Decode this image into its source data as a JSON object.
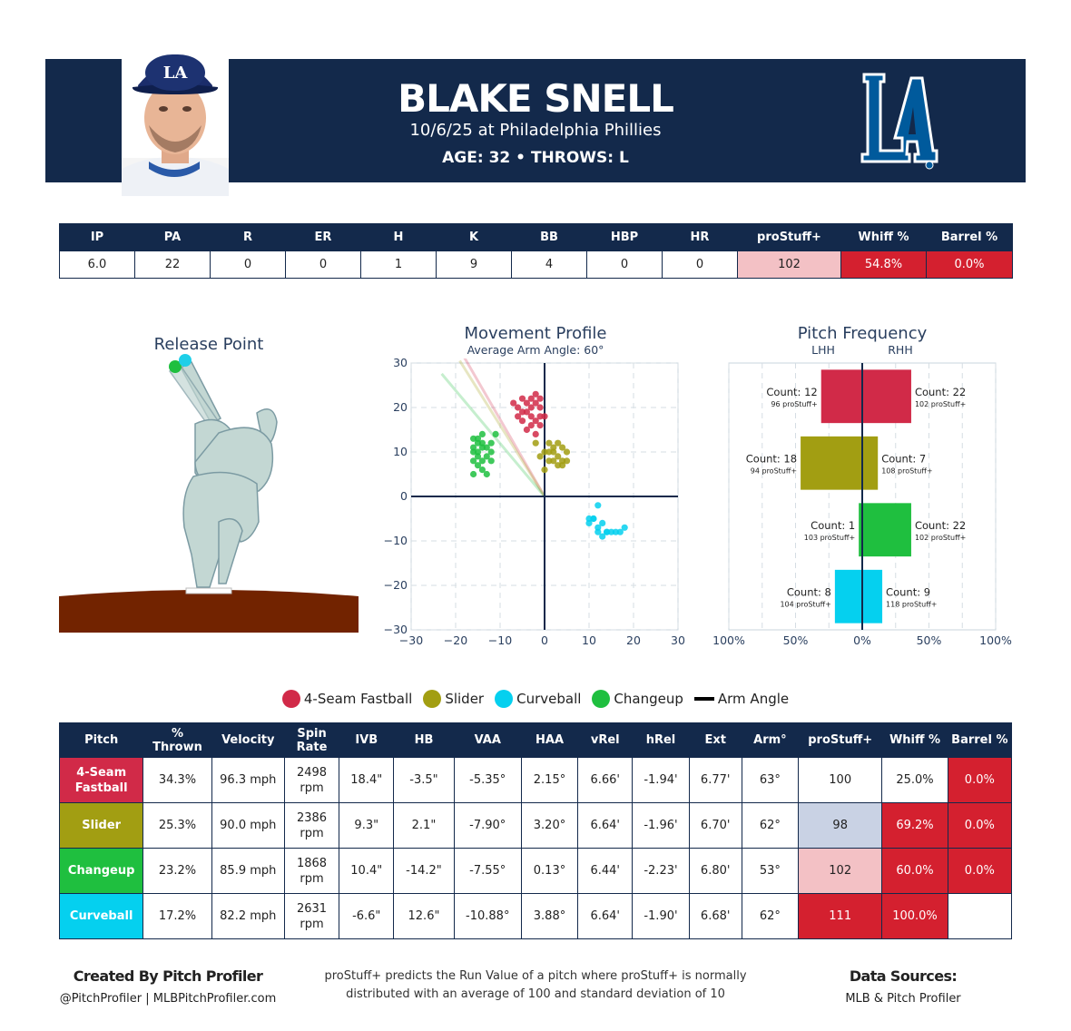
{
  "header": {
    "name": "BLAKE SNELL",
    "game": "10/6/25 at Philadelphia Phillies",
    "bio": "AGE: 32 • THROWS: L",
    "logo_text": "LA",
    "colors": {
      "navy": "#13294b",
      "dodger_blue": "#005a9c"
    }
  },
  "summary": {
    "headers": [
      "IP",
      "PA",
      "R",
      "ER",
      "H",
      "K",
      "BB",
      "HBP",
      "HR",
      "proStuff+",
      "Whiff %",
      "Barrel %"
    ],
    "values": [
      "6.0",
      "22",
      "0",
      "0",
      "1",
      "9",
      "4",
      "0",
      "0",
      "102",
      "54.8%",
      "0.0%"
    ],
    "cell_colors": [
      "#ffffff",
      "#ffffff",
      "#ffffff",
      "#ffffff",
      "#ffffff",
      "#ffffff",
      "#ffffff",
      "#ffffff",
      "#ffffff",
      "#f3c1c5",
      "#d4202f",
      "#d4202f"
    ],
    "cell_text_colors": [
      "#222",
      "#222",
      "#222",
      "#222",
      "#222",
      "#222",
      "#222",
      "#222",
      "#222",
      "#222",
      "#ffffff",
      "#ffffff"
    ]
  },
  "release": {
    "title": "Release Point",
    "points": [
      {
        "pitch": "Changeup",
        "color": "#1fbf3f"
      },
      {
        "pitch": "Curveball",
        "color": "#1ecfe8"
      }
    ]
  },
  "movement": {
    "title": "Movement Profile",
    "subtitle": "Average Arm Angle: 60°"
  },
  "frequency": {
    "title": "Pitch Frequency",
    "left_label": "LHH",
    "right_label": "RHH",
    "rows": [
      {
        "pitch": "4-Seam Fastball",
        "color": "#d12a48",
        "lhh_count": "Count: 12",
        "lhh_stuff": "96 proStuff+",
        "rhh_count": "Count: 22",
        "rhh_stuff": "102 proStuff+"
      },
      {
        "pitch": "Slider",
        "color": "#a29e12",
        "lhh_count": "Count: 18",
        "lhh_stuff": "94 proStuff+",
        "rhh_count": "Count: 7",
        "rhh_stuff": "108 proStuff+"
      },
      {
        "pitch": "Changeup",
        "color": "#1fbf3f",
        "lhh_count": "Count: 1",
        "lhh_stuff": "103 proStuff+",
        "rhh_count": "Count: 22",
        "rhh_stuff": "102 proStuff+"
      },
      {
        "pitch": "Curveball",
        "color": "#05d0ef",
        "lhh_count": "Count: 8",
        "lhh_stuff": "104 proStuff+",
        "rhh_count": "Count: 9",
        "rhh_stuff": "118 proStuff+"
      }
    ]
  },
  "legend": [
    {
      "label": "4-Seam Fastball",
      "color": "#d12a48",
      "kind": "dot"
    },
    {
      "label": "Slider",
      "color": "#a29e12",
      "kind": "dot"
    },
    {
      "label": "Curveball",
      "color": "#05d0ef",
      "kind": "dot"
    },
    {
      "label": "Changeup",
      "color": "#1fbf3f",
      "kind": "dot"
    },
    {
      "label": "Arm Angle",
      "color": "#000000",
      "kind": "line"
    }
  ],
  "pitch_table": {
    "headers": [
      [
        "Pitch"
      ],
      [
        "%",
        "Thrown"
      ],
      [
        "Velocity"
      ],
      [
        "Spin",
        "Rate"
      ],
      [
        "IVB"
      ],
      [
        "HB"
      ],
      [
        "VAA"
      ],
      [
        "HAA"
      ],
      [
        "vRel"
      ],
      [
        "hRel"
      ],
      [
        "Ext"
      ],
      [
        "Arm°"
      ],
      [
        "proStuff+"
      ],
      [
        "Whiff %"
      ],
      [
        "Barrel %"
      ]
    ],
    "rows": [
      {
        "name": [
          "4-Seam",
          "Fastball"
        ],
        "name_color": "#d12a48",
        "cells": [
          "34.3%",
          "96.3 mph",
          "2498 rpm",
          "18.4\"",
          "-3.5\"",
          "-5.35°",
          "2.15°",
          "6.66'",
          "-1.94'",
          "6.77'",
          "63°",
          "100",
          "25.0%",
          "0.0%"
        ],
        "bg": [
          "",
          "",
          "",
          "",
          "",
          "",
          "",
          "",
          "",
          "",
          "",
          "#ffffff",
          "#ffffff",
          "#d4202f"
        ],
        "fg": [
          "",
          "",
          "",
          "",
          "",
          "",
          "",
          "",
          "",
          "",
          "",
          "#222",
          "#222",
          "#ffffff"
        ]
      },
      {
        "name": [
          "Slider"
        ],
        "name_color": "#a29e12",
        "cells": [
          "25.3%",
          "90.0 mph",
          "2386 rpm",
          "9.3\"",
          "2.1\"",
          "-7.90°",
          "3.20°",
          "6.64'",
          "-1.96'",
          "6.70'",
          "62°",
          "98",
          "69.2%",
          "0.0%"
        ],
        "bg": [
          "",
          "",
          "",
          "",
          "",
          "",
          "",
          "",
          "",
          "",
          "",
          "#c9d2e4",
          "#d4202f",
          "#d4202f"
        ],
        "fg": [
          "",
          "",
          "",
          "",
          "",
          "",
          "",
          "",
          "",
          "",
          "",
          "#222",
          "#ffffff",
          "#ffffff"
        ]
      },
      {
        "name": [
          "Changeup"
        ],
        "name_color": "#1fbf3f",
        "cells": [
          "23.2%",
          "85.9 mph",
          "1868 rpm",
          "10.4\"",
          "-14.2\"",
          "-7.55°",
          "0.13°",
          "6.44'",
          "-2.23'",
          "6.80'",
          "53°",
          "102",
          "60.0%",
          "0.0%"
        ],
        "bg": [
          "",
          "",
          "",
          "",
          "",
          "",
          "",
          "",
          "",
          "",
          "",
          "#f3c1c5",
          "#d4202f",
          "#d4202f"
        ],
        "fg": [
          "",
          "",
          "",
          "",
          "",
          "",
          "",
          "",
          "",
          "",
          "",
          "#222",
          "#ffffff",
          "#ffffff"
        ]
      },
      {
        "name": [
          "Curveball"
        ],
        "name_color": "#05d0ef",
        "cells": [
          "17.2%",
          "82.2 mph",
          "2631 rpm",
          "-6.6\"",
          "12.6\"",
          "-10.88°",
          "3.88°",
          "6.64'",
          "-1.90'",
          "6.68'",
          "62°",
          "111",
          "100.0%",
          ""
        ],
        "bg": [
          "",
          "",
          "",
          "",
          "",
          "",
          "",
          "",
          "",
          "",
          "",
          "#d4202f",
          "#d4202f",
          "#ffffff"
        ],
        "fg": [
          "",
          "",
          "",
          "",
          "",
          "",
          "",
          "",
          "",
          "",
          "",
          "#ffffff",
          "#ffffff",
          "#222"
        ]
      }
    ]
  },
  "footer": {
    "credit_title": "Created By Pitch Profiler",
    "credit_sub": "@PitchProfiler | MLBPitchProfiler.com",
    "note_line1": "proStuff+ predicts the Run Value of a pitch where proStuff+ is normally",
    "note_line2": "distributed with an average of 100 and standard deviation of 10",
    "sources_title": "Data Sources:",
    "sources_sub": "MLB & Pitch Profiler"
  },
  "chart_data": [
    {
      "type": "scatter",
      "title": "Movement Profile",
      "subtitle": "Average Arm Angle: 60°",
      "xlim": [
        -30,
        30
      ],
      "ylim": [
        -30,
        30
      ],
      "xticks": [
        -30,
        -20,
        -10,
        0,
        10,
        20,
        30
      ],
      "yticks": [
        -30,
        -20,
        -10,
        0,
        10,
        20,
        30
      ],
      "grid": true,
      "arm_angle_deg": 60,
      "series": [
        {
          "name": "4-Seam Fastball",
          "color": "#d12a48",
          "points": [
            [
              -7,
              21
            ],
            [
              -6,
              20
            ],
            [
              -5,
              22
            ],
            [
              -4,
              19
            ],
            [
              -3,
              18
            ],
            [
              -2,
              21
            ],
            [
              -2,
              23
            ],
            [
              -1,
              20
            ],
            [
              -3,
              16
            ],
            [
              -4,
              15
            ],
            [
              -5,
              17
            ],
            [
              -6,
              18
            ],
            [
              -1,
              18
            ],
            [
              -2,
              14
            ],
            [
              0,
              18
            ],
            [
              -3,
              20
            ],
            [
              -4,
              21
            ],
            [
              -2,
              17
            ],
            [
              -1,
              16
            ],
            [
              -5,
              19
            ],
            [
              -3,
              22
            ],
            [
              -1,
              22
            ]
          ]
        },
        {
          "name": "Slider",
          "color": "#a29e12",
          "points": [
            [
              -2,
              12
            ],
            [
              0,
              10
            ],
            [
              1,
              8
            ],
            [
              2,
              10
            ],
            [
              3,
              9
            ],
            [
              4,
              11
            ],
            [
              5,
              10
            ],
            [
              3,
              7
            ],
            [
              4,
              8
            ],
            [
              1,
              12
            ],
            [
              2,
              11
            ],
            [
              0,
              6
            ],
            [
              -1,
              9
            ],
            [
              3,
              12
            ],
            [
              5,
              8
            ],
            [
              2,
              8
            ],
            [
              4,
              7
            ],
            [
              1,
              10
            ]
          ]
        },
        {
          "name": "Curveball",
          "color": "#05d0ef",
          "points": [
            [
              12,
              -2
            ],
            [
              11,
              -5
            ],
            [
              10,
              -6
            ],
            [
              12,
              -7
            ],
            [
              13,
              -6
            ],
            [
              14,
              -8
            ],
            [
              15,
              -8
            ],
            [
              16,
              -8
            ],
            [
              17,
              -8
            ],
            [
              18,
              -7
            ],
            [
              11,
              -5
            ],
            [
              10,
              -5
            ],
            [
              13,
              -9
            ],
            [
              14,
              -8
            ],
            [
              12,
              -8
            ]
          ]
        },
        {
          "name": "Changeup",
          "color": "#1fbf3f",
          "points": [
            [
              -16,
              13
            ],
            [
              -15,
              12
            ],
            [
              -14,
              14
            ],
            [
              -13,
              11
            ],
            [
              -12,
              10
            ],
            [
              -15,
              9
            ],
            [
              -16,
              8
            ],
            [
              -14,
              8
            ],
            [
              -13,
              9
            ],
            [
              -15,
              10
            ],
            [
              -16,
              11
            ],
            [
              -12,
              12
            ],
            [
              -14,
              6
            ],
            [
              -15,
              7
            ],
            [
              -16,
              5
            ],
            [
              -13,
              5
            ],
            [
              -12,
              8
            ],
            [
              -11,
              14
            ],
            [
              -14,
              11
            ],
            [
              -15,
              13
            ],
            [
              -16,
              10
            ],
            [
              -14,
              12
            ]
          ]
        }
      ]
    },
    {
      "type": "bar",
      "title": "Pitch Frequency",
      "xticks": [
        "100%",
        "50%",
        "0%",
        "50%",
        "100%"
      ],
      "xlim": [
        -100,
        100
      ],
      "categories": [
        "4-Seam Fastball",
        "Slider",
        "Changeup",
        "Curveball"
      ],
      "series": [
        {
          "name": "LHH",
          "values": [
            -30.8,
            -46.2,
            -2.6,
            -20.5
          ]
        },
        {
          "name": "RHH",
          "values": [
            36.7,
            11.7,
            36.7,
            15.0
          ]
        }
      ]
    }
  ]
}
